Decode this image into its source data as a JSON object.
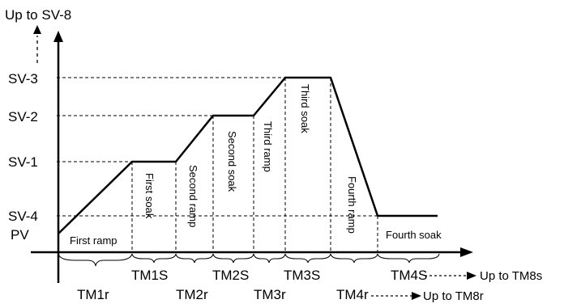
{
  "y_axis": {
    "top_label": "Up to SV-8",
    "levels": [
      "SV-3",
      "SV-2",
      "SV-1",
      "SV-4",
      "PV"
    ]
  },
  "segments": [
    "First ramp",
    "First soak",
    "Second ramp",
    "Second soak",
    "Third ramp",
    "Third soak",
    "Fourth ramp",
    "Fourth soak"
  ],
  "time_labels": {
    "ramp": [
      "TM1r",
      "TM2r",
      "TM3r",
      "TM4r"
    ],
    "soak": [
      "TM1S",
      "TM2S",
      "TM3S",
      "TM4S"
    ]
  },
  "continuations": {
    "soak": "Up to TM8s",
    "ramp": "Up to TM8r"
  }
}
